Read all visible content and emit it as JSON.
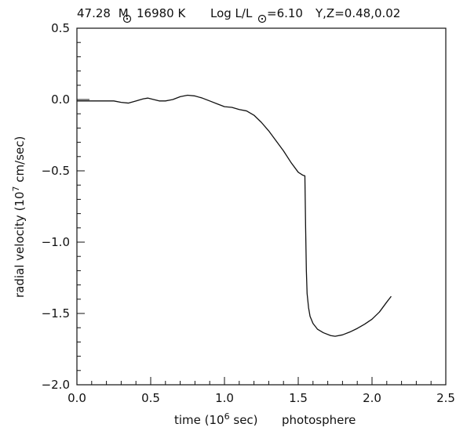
{
  "chart_data": {
    "type": "line",
    "title": {
      "mass": "47.28",
      "mass_unit": "M",
      "temperature": "16980 K",
      "lum_prefix": "Log L/L",
      "lum_value": "=6.10",
      "yz": "Y,Z=0.48,0.02"
    },
    "xlabel": {
      "prefix": "time (10",
      "exp": "6",
      "suffix": " sec)",
      "note": "photosphere"
    },
    "ylabel": {
      "prefix": "radial velocity (10",
      "exp": "7",
      "suffix": " cm/sec)"
    },
    "xlim": [
      0.0,
      2.5
    ],
    "ylim": [
      -2.0,
      0.5
    ],
    "x_ticks": [
      "0.0",
      "0.5",
      "1.0",
      "1.5",
      "2.0",
      "2.5"
    ],
    "y_ticks": [
      "0.5",
      "0.0",
      "-0.5",
      "-1.0",
      "-1.5",
      "-2.0"
    ],
    "grid": false,
    "series": [
      {
        "color": "#111111",
        "points": [
          [
            0.0,
            -0.01
          ],
          [
            0.05,
            -0.01
          ],
          [
            0.1,
            -0.01
          ],
          [
            0.15,
            -0.01
          ],
          [
            0.2,
            -0.01
          ],
          [
            0.25,
            -0.01
          ],
          [
            0.3,
            -0.02
          ],
          [
            0.35,
            -0.025
          ],
          [
            0.4,
            -0.01
          ],
          [
            0.45,
            0.005
          ],
          [
            0.48,
            0.01
          ],
          [
            0.52,
            0.0
          ],
          [
            0.56,
            -0.01
          ],
          [
            0.6,
            -0.01
          ],
          [
            0.65,
            0.0
          ],
          [
            0.7,
            0.02
          ],
          [
            0.75,
            0.03
          ],
          [
            0.8,
            0.025
          ],
          [
            0.85,
            0.01
          ],
          [
            0.9,
            -0.01
          ],
          [
            0.95,
            -0.03
          ],
          [
            1.0,
            -0.05
          ],
          [
            1.05,
            -0.055
          ],
          [
            1.1,
            -0.07
          ],
          [
            1.15,
            -0.08
          ],
          [
            1.2,
            -0.11
          ],
          [
            1.25,
            -0.16
          ],
          [
            1.3,
            -0.22
          ],
          [
            1.35,
            -0.29
          ],
          [
            1.4,
            -0.36
          ],
          [
            1.45,
            -0.44
          ],
          [
            1.5,
            -0.51
          ],
          [
            1.53,
            -0.53
          ],
          [
            1.545,
            -0.535
          ],
          [
            1.55,
            -0.9
          ],
          [
            1.555,
            -1.2
          ],
          [
            1.56,
            -1.36
          ],
          [
            1.57,
            -1.46
          ],
          [
            1.58,
            -1.52
          ],
          [
            1.6,
            -1.57
          ],
          [
            1.63,
            -1.61
          ],
          [
            1.67,
            -1.635
          ],
          [
            1.72,
            -1.655
          ],
          [
            1.75,
            -1.66
          ],
          [
            1.8,
            -1.65
          ],
          [
            1.85,
            -1.63
          ],
          [
            1.9,
            -1.605
          ],
          [
            1.95,
            -1.575
          ],
          [
            2.0,
            -1.54
          ],
          [
            2.05,
            -1.49
          ],
          [
            2.1,
            -1.42
          ],
          [
            2.13,
            -1.38
          ]
        ]
      }
    ]
  }
}
